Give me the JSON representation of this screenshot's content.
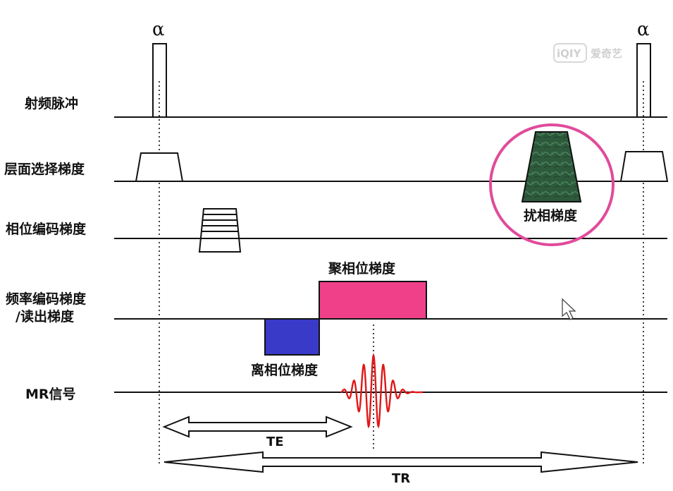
{
  "rows": {
    "rf": "射频脉冲",
    "slice": "层面选择梯度",
    "phase": "相位编码梯度",
    "freq_line1": "频率编码梯度",
    "freq_line2": "/读出梯度",
    "signal": "MR信号"
  },
  "pulse": {
    "flip_symbol": "α"
  },
  "annotations": {
    "spoiler": "扰相梯度",
    "rephase": "聚相位梯度",
    "dephase": "离相位梯度"
  },
  "timing": {
    "te": "TE",
    "tr": "TR"
  },
  "watermark": {
    "brand": "爱奇艺",
    "logo_text": "iQIY"
  },
  "colors": {
    "rephase": "#f0408a",
    "dephase": "#3a3ac8",
    "spoiler": "#2e5a3c",
    "highlight": "#e04b9b",
    "signal": "#e01818"
  }
}
